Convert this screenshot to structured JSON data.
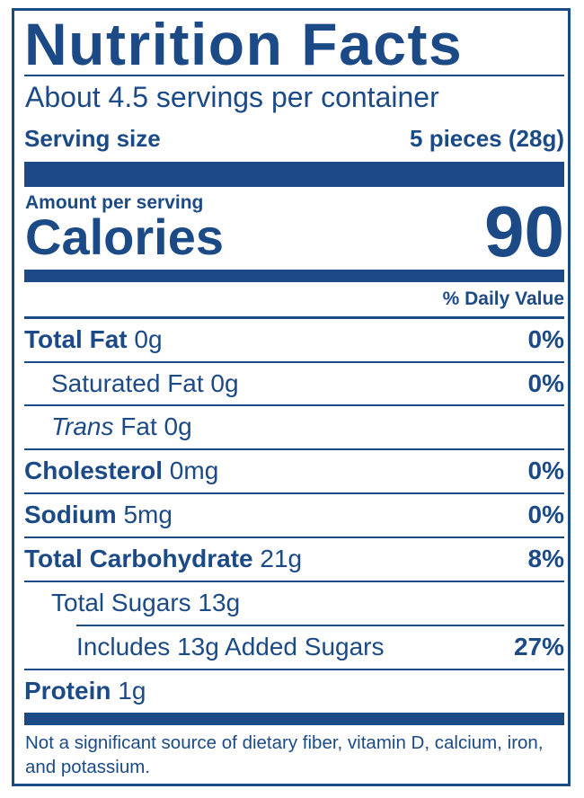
{
  "title": "Nutrition Facts",
  "servings": "About 4.5 servings per container",
  "serving_size": {
    "label": "Serving size",
    "value": "5 pieces (28g)"
  },
  "amount_per_serving": "Amount per serving",
  "calories": {
    "label": "Calories",
    "value": "90"
  },
  "daily_value_header": "% Daily Value",
  "rows": [
    {
      "name": "Total Fat",
      "amount": " 0g",
      "dv": "0%"
    },
    {
      "name": "Saturated Fat 0g",
      "dv": "0%"
    },
    {
      "name": "Trans",
      "amount": " Fat 0g",
      "dv": ""
    },
    {
      "name": "Cholesterol",
      "amount": " 0mg",
      "dv": "0%"
    },
    {
      "name": "Sodium",
      "amount": " 5mg",
      "dv": "0%"
    },
    {
      "name": "Total Carbohydrate",
      "amount": " 21g",
      "dv": "8%"
    },
    {
      "name": "Total Sugars 13g",
      "dv": ""
    },
    {
      "name": "Includes 13g Added Sugars",
      "dv": "27%"
    },
    {
      "name": "Protein",
      "amount": " 1g",
      "dv": ""
    }
  ],
  "footnote": "Not a significant source of dietary fiber, vitamin D, calcium, iron, and potassium.",
  "colors": {
    "ink": "#1b4a87"
  }
}
